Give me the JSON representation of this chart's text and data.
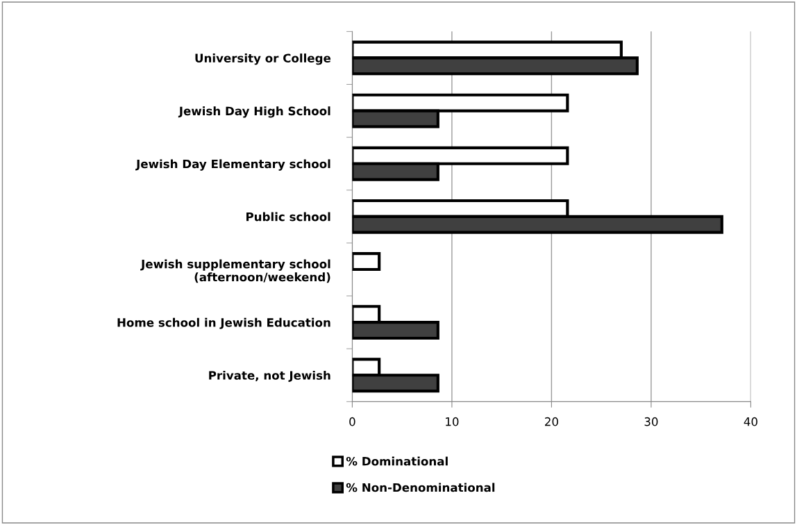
{
  "chart_data": {
    "type": "bar",
    "orientation": "horizontal",
    "categories": [
      "University or College",
      "Jewish Day High School",
      "Jewish Day Elementary school",
      "Public school",
      "Jewish supplementary school\n(afternoon/weekend)",
      "Home school in Jewish Education",
      "Private, not Jewish"
    ],
    "series": [
      {
        "name": "% Dominational",
        "color": "#ffffff",
        "values": [
          27.0,
          21.6,
          21.6,
          21.6,
          2.7,
          2.7,
          2.7
        ]
      },
      {
        "name": "% Non-Denominational",
        "color": "#404040",
        "values": [
          28.6,
          8.6,
          8.6,
          37.1,
          null,
          8.6,
          8.6
        ]
      }
    ],
    "xlim": [
      0,
      40
    ],
    "xticks": [
      0,
      10,
      20,
      30,
      40
    ],
    "grid": "x",
    "legend": "bottom"
  }
}
